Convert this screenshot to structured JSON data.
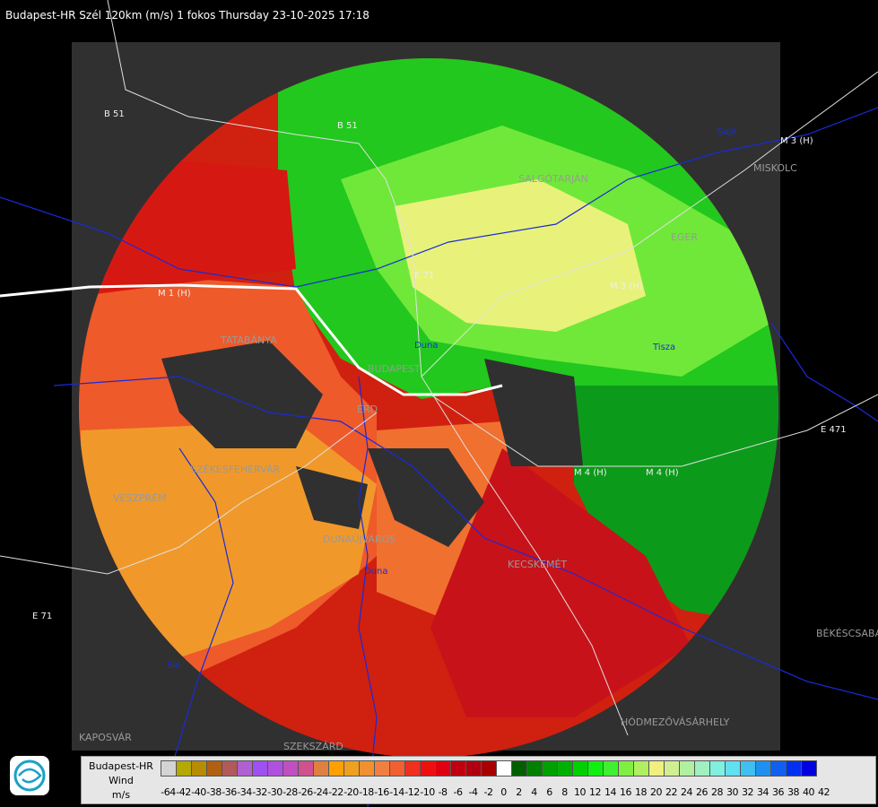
{
  "header": {
    "title": "Budapest-HR Szél 120km (m/s) 1 fokos Thursday 23-10-2025 17:18"
  },
  "legend": {
    "line1": "Budapest-HR",
    "line2": "Wind",
    "line3": "m/s",
    "ticks": [
      "-64",
      "-42",
      "-40",
      "-38",
      "-36",
      "-34",
      "-32",
      "-30",
      "-28",
      "-26",
      "-24",
      "-22",
      "-20",
      "-18",
      "-16",
      "-14",
      "-12",
      "-10",
      "-8",
      "-6",
      "-4",
      "-2",
      "0",
      "2",
      "4",
      "6",
      "8",
      "10",
      "12",
      "14",
      "16",
      "18",
      "20",
      "22",
      "24",
      "26",
      "28",
      "30",
      "32",
      "34",
      "36",
      "38",
      "40",
      "42"
    ],
    "colors": [
      "#d4d4d4",
      "#b5a800",
      "#b78c00",
      "#b06010",
      "#b05a5a",
      "#b060d0",
      "#a050f0",
      "#b050e0",
      "#c050c0",
      "#d05090",
      "#e08040",
      "#ffa000",
      "#f0a020",
      "#f09030",
      "#f08040",
      "#f06030",
      "#f03020",
      "#ee1010",
      "#e00010",
      "#c00010",
      "#b00010",
      "#a80000",
      "#ffffff",
      "#006000",
      "#008000",
      "#00a000",
      "#00b000",
      "#00d000",
      "#10f010",
      "#40f030",
      "#80f040",
      "#b0f060",
      "#f0f080",
      "#d0f090",
      "#b0f0a0",
      "#a0f0c0",
      "#80f0e0",
      "#60e0f0",
      "#40c0f0",
      "#2090f0",
      "#1060f0",
      "#0030f0",
      "#0000e0"
    ]
  },
  "map": {
    "cities": [
      "SALGÓTARJÁN",
      "EGER",
      "MISKOLC",
      "TATABÁNYA",
      "BUDAPEST",
      "ÉRD",
      "SZÉKESFEHÉRVÁR",
      "VESZPRÉM",
      "DUNAÚJVÁROS",
      "KECSKEMÉT",
      "HÓDMEZŐVÁSÁRHELY",
      "BÉKÉSCSABA",
      "KAPOSVÁR",
      "SZEKSZÁRD"
    ],
    "roads": [
      "B 51",
      "B 51",
      "M 1 (H)",
      "M 3 (H)",
      "M 3 (H)",
      "E 71",
      "E 71",
      "E 471",
      "M 4 (H)",
      "M 4 (H)"
    ],
    "rivers": [
      "Duna",
      "Duna",
      "Tisza",
      "Sió",
      "Sajó"
    ],
    "colors": {
      "background": "#000000",
      "radar_frame": "#303030",
      "border_line": "#ffffff",
      "county_line": "#1a2ad8"
    }
  }
}
